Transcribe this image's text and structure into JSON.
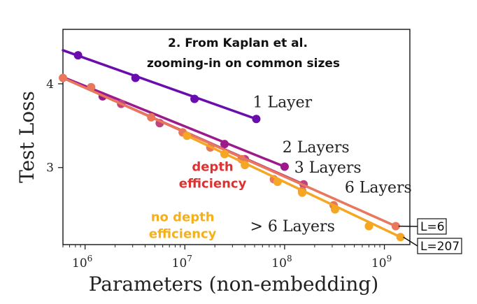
{
  "chart_data": {
    "type": "line",
    "title_lines": [
      "2. From Kaplan et al.",
      "zooming-in on common sizes"
    ],
    "xlabel": "Parameters (non-embedding)",
    "ylabel": "Test Loss",
    "xscale": "log",
    "xlim": [
      600000,
      1800000000
    ],
    "ylim": [
      2.08,
      4.65
    ],
    "x_ticks": [
      {
        "value": 1000000,
        "base": "10",
        "exp": "6"
      },
      {
        "value": 10000000,
        "base": "10",
        "exp": "7"
      },
      {
        "value": 100000000,
        "base": "10",
        "exp": "8"
      },
      {
        "value": 1000000000,
        "base": "10",
        "exp": "9"
      }
    ],
    "y_ticks": [
      {
        "value": 3,
        "label": "3"
      },
      {
        "value": 4,
        "label": "4"
      }
    ],
    "series": [
      {
        "name": "1 Layer",
        "color": "#6a0dad",
        "x": [
          850000,
          3200000,
          12500000,
          52000000
        ],
        "y": [
          4.34,
          4.07,
          3.82,
          3.58
        ],
        "line_x": [
          600000,
          52000000
        ],
        "line_y": [
          4.4,
          3.58
        ]
      },
      {
        "name": "2 Layers",
        "color": "#9c1a8c",
        "x": [
          1500000,
          25000000,
          100000000
        ],
        "y": [
          3.85,
          3.28,
          3.01
        ],
        "line_x": [
          600000,
          100000000
        ],
        "line_y": [
          4.08,
          3.01
        ]
      },
      {
        "name": "3 Layers",
        "color": "#c2427f",
        "x": [
          2300000,
          5600000,
          40000000,
          155000000
        ],
        "y": [
          3.76,
          3.53,
          3.1,
          2.8
        ],
        "line_x": [
          600000,
          155000000
        ],
        "line_y": [
          4.07,
          2.8
        ]
      },
      {
        "name": "6 Layers",
        "color": "#e8775c",
        "x": [
          600000,
          1150000,
          4600000,
          9500000,
          18000000,
          37000000,
          78000000,
          150000000,
          310000000,
          1300000000
        ],
        "y": [
          4.07,
          3.96,
          3.6,
          3.42,
          3.24,
          3.1,
          2.86,
          2.72,
          2.55,
          2.3
        ],
        "line_x": [
          600000,
          1300000000
        ],
        "line_y": [
          4.07,
          2.3
        ]
      },
      {
        "name": "> 6 Layers",
        "color": "#f5a623",
        "x": [
          10500000,
          25000000,
          40000000,
          85000000,
          150000000,
          320000000,
          700000000,
          1450000000
        ],
        "y": [
          3.38,
          3.16,
          3.03,
          2.83,
          2.7,
          2.5,
          2.3,
          2.17
        ],
        "line_x": [
          10500000,
          1450000000
        ],
        "line_y": [
          3.38,
          2.17
        ]
      }
    ],
    "annotations": [
      {
        "text": "1 Layer",
        "x": 48000000,
        "y": 3.72,
        "color": "#222222",
        "font": "serif"
      },
      {
        "text": "2 Layers",
        "x": 95000000,
        "y": 3.18,
        "color": "#222222",
        "font": "serif"
      },
      {
        "text": "3 Layers",
        "x": 125000000,
        "y": 2.94,
        "color": "#222222",
        "font": "serif"
      },
      {
        "text": "6 Layers",
        "x": 400000000,
        "y": 2.7,
        "color": "#222222",
        "font": "serif"
      },
      {
        "text": "> 6 Layers",
        "x": 45000000,
        "y": 2.24,
        "color": "#222222",
        "font": "serif"
      },
      {
        "text": "depth",
        "x": 19000000,
        "y": 2.96,
        "color": "#e03030",
        "font": "sans"
      },
      {
        "text": "efficiency",
        "x": 19000000,
        "y": 2.76,
        "color": "#e03030",
        "font": "sans"
      },
      {
        "text": "no depth",
        "x": 9500000,
        "y": 2.36,
        "color": "#f5b01c",
        "font": "sans"
      },
      {
        "text": "efficiency",
        "x": 9500000,
        "y": 2.16,
        "color": "#f5b01c",
        "font": "sans"
      }
    ],
    "callouts": [
      {
        "text": "L=6",
        "x": 1300000000,
        "y": 2.3
      },
      {
        "text": "L=207",
        "x": 1450000000,
        "y": 2.17
      }
    ]
  }
}
